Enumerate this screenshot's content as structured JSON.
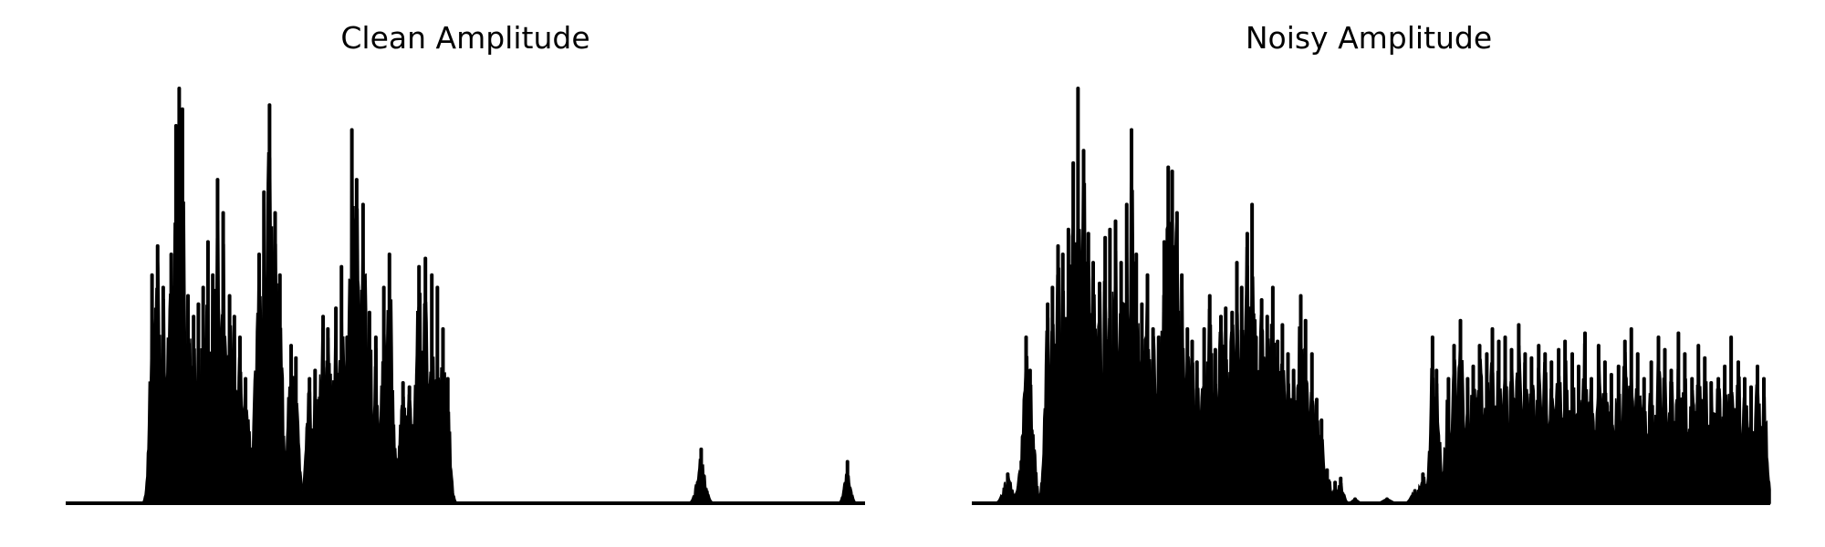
{
  "chart_data": [
    {
      "type": "area",
      "title": "Clean Amplitude",
      "xlabel": "",
      "ylabel": "",
      "grid": false,
      "axes_visible": false,
      "color": "#000000",
      "ylim": [
        0,
        1
      ],
      "peaks": [
        [
          0.108,
          0.55
        ],
        [
          0.115,
          0.62
        ],
        [
          0.122,
          0.52
        ],
        [
          0.132,
          0.6
        ],
        [
          0.138,
          0.91
        ],
        [
          0.142,
          1.0
        ],
        [
          0.146,
          0.95
        ],
        [
          0.153,
          0.5
        ],
        [
          0.16,
          0.45
        ],
        [
          0.166,
          0.48
        ],
        [
          0.172,
          0.52
        ],
        [
          0.178,
          0.63
        ],
        [
          0.184,
          0.55
        ],
        [
          0.19,
          0.78
        ],
        [
          0.197,
          0.7
        ],
        [
          0.205,
          0.5
        ],
        [
          0.211,
          0.45
        ],
        [
          0.218,
          0.4
        ],
        [
          0.225,
          0.3
        ],
        [
          0.242,
          0.6
        ],
        [
          0.248,
          0.75
        ],
        [
          0.255,
          0.96
        ],
        [
          0.262,
          0.7
        ],
        [
          0.268,
          0.55
        ],
        [
          0.282,
          0.38
        ],
        [
          0.288,
          0.35
        ],
        [
          0.305,
          0.3
        ],
        [
          0.312,
          0.32
        ],
        [
          0.322,
          0.45
        ],
        [
          0.328,
          0.42
        ],
        [
          0.338,
          0.47
        ],
        [
          0.345,
          0.57
        ],
        [
          0.352,
          0.4
        ],
        [
          0.358,
          0.9
        ],
        [
          0.364,
          0.78
        ],
        [
          0.372,
          0.72
        ],
        [
          0.38,
          0.46
        ],
        [
          0.388,
          0.4
        ],
        [
          0.398,
          0.52
        ],
        [
          0.405,
          0.6
        ],
        [
          0.422,
          0.29
        ],
        [
          0.43,
          0.28
        ],
        [
          0.442,
          0.57
        ],
        [
          0.45,
          0.59
        ],
        [
          0.458,
          0.55
        ],
        [
          0.465,
          0.52
        ],
        [
          0.472,
          0.42
        ],
        [
          0.478,
          0.3
        ],
        [
          0.795,
          0.13
        ],
        [
          0.978,
          0.1
        ]
      ]
    },
    {
      "type": "area",
      "title": "Noisy Amplitude",
      "xlabel": "",
      "ylabel": "",
      "grid": false,
      "axes_visible": false,
      "color": "#000000",
      "ylim": [
        0,
        1
      ],
      "peaks": [
        [
          0.045,
          0.07
        ],
        [
          0.062,
          0.1
        ],
        [
          0.068,
          0.4
        ],
        [
          0.073,
          0.32
        ],
        [
          0.095,
          0.48
        ],
        [
          0.101,
          0.52
        ],
        [
          0.108,
          0.62
        ],
        [
          0.114,
          0.6
        ],
        [
          0.121,
          0.66
        ],
        [
          0.127,
          0.82
        ],
        [
          0.133,
          1.0
        ],
        [
          0.14,
          0.85
        ],
        [
          0.146,
          0.65
        ],
        [
          0.152,
          0.58
        ],
        [
          0.16,
          0.53
        ],
        [
          0.167,
          0.64
        ],
        [
          0.173,
          0.66
        ],
        [
          0.18,
          0.68
        ],
        [
          0.187,
          0.58
        ],
        [
          0.194,
          0.72
        ],
        [
          0.2,
          0.9
        ],
        [
          0.206,
          0.6
        ],
        [
          0.213,
          0.48
        ],
        [
          0.22,
          0.55
        ],
        [
          0.227,
          0.42
        ],
        [
          0.234,
          0.4
        ],
        [
          0.241,
          0.63
        ],
        [
          0.246,
          0.81
        ],
        [
          0.251,
          0.8
        ],
        [
          0.257,
          0.7
        ],
        [
          0.263,
          0.55
        ],
        [
          0.27,
          0.42
        ],
        [
          0.276,
          0.39
        ],
        [
          0.282,
          0.34
        ],
        [
          0.291,
          0.42
        ],
        [
          0.298,
          0.5
        ],
        [
          0.305,
          0.37
        ],
        [
          0.312,
          0.45
        ],
        [
          0.318,
          0.47
        ],
        [
          0.326,
          0.46
        ],
        [
          0.332,
          0.58
        ],
        [
          0.338,
          0.52
        ],
        [
          0.345,
          0.65
        ],
        [
          0.351,
          0.72
        ],
        [
          0.356,
          0.4
        ],
        [
          0.363,
          0.49
        ],
        [
          0.37,
          0.45
        ],
        [
          0.377,
          0.52
        ],
        [
          0.383,
          0.39
        ],
        [
          0.389,
          0.43
        ],
        [
          0.396,
          0.36
        ],
        [
          0.403,
          0.32
        ],
        [
          0.412,
          0.5
        ],
        [
          0.418,
          0.44
        ],
        [
          0.426,
          0.36
        ],
        [
          0.432,
          0.25
        ],
        [
          0.438,
          0.2
        ],
        [
          0.445,
          0.08
        ],
        [
          0.455,
          0.05
        ],
        [
          0.462,
          0.06
        ],
        [
          0.48,
          0.01
        ],
        [
          0.52,
          0.01
        ],
        [
          0.555,
          0.03
        ],
        [
          0.565,
          0.07
        ],
        [
          0.577,
          0.4
        ],
        [
          0.582,
          0.32
        ],
        [
          0.597,
          0.3
        ],
        [
          0.604,
          0.38
        ],
        [
          0.612,
          0.44
        ],
        [
          0.621,
          0.3
        ],
        [
          0.628,
          0.33
        ],
        [
          0.636,
          0.38
        ],
        [
          0.645,
          0.36
        ],
        [
          0.652,
          0.42
        ],
        [
          0.66,
          0.39
        ],
        [
          0.668,
          0.4
        ],
        [
          0.676,
          0.37
        ],
        [
          0.685,
          0.43
        ],
        [
          0.693,
          0.36
        ],
        [
          0.701,
          0.35
        ],
        [
          0.71,
          0.38
        ],
        [
          0.718,
          0.36
        ],
        [
          0.726,
          0.34
        ],
        [
          0.735,
          0.37
        ],
        [
          0.743,
          0.39
        ],
        [
          0.752,
          0.36
        ],
        [
          0.76,
          0.33
        ],
        [
          0.768,
          0.41
        ],
        [
          0.776,
          0.3
        ],
        [
          0.785,
          0.38
        ],
        [
          0.793,
          0.34
        ],
        [
          0.801,
          0.31
        ],
        [
          0.81,
          0.33
        ],
        [
          0.818,
          0.39
        ],
        [
          0.826,
          0.42
        ],
        [
          0.834,
          0.36
        ],
        [
          0.842,
          0.3
        ],
        [
          0.851,
          0.34
        ],
        [
          0.86,
          0.4
        ],
        [
          0.868,
          0.37
        ],
        [
          0.876,
          0.32
        ],
        [
          0.885,
          0.41
        ],
        [
          0.893,
          0.36
        ],
        [
          0.902,
          0.3
        ],
        [
          0.91,
          0.38
        ],
        [
          0.918,
          0.35
        ],
        [
          0.926,
          0.29
        ],
        [
          0.935,
          0.3
        ],
        [
          0.943,
          0.33
        ],
        [
          0.951,
          0.4
        ],
        [
          0.96,
          0.34
        ],
        [
          0.968,
          0.3
        ],
        [
          0.976,
          0.28
        ],
        [
          0.984,
          0.33
        ],
        [
          0.992,
          0.3
        ]
      ]
    }
  ]
}
